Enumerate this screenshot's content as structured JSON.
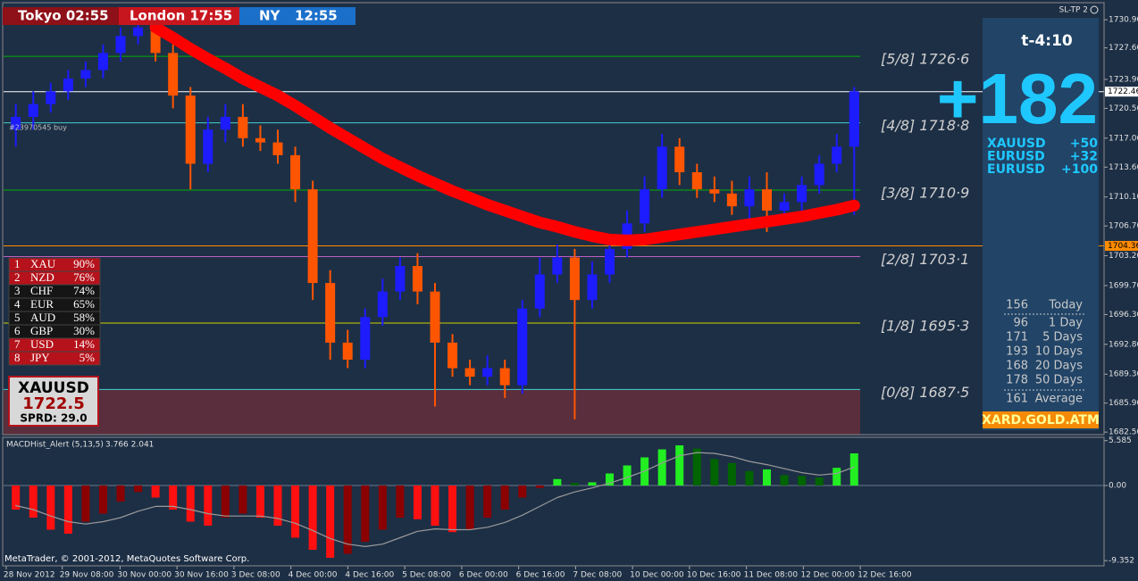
{
  "clock": {
    "tokyo": "Tokyo 02:55",
    "london": "London 17:55",
    "ny": "NY",
    "ny_time": "12:55"
  },
  "indicator_label": "SL-TP 2",
  "order_label": "#23970545 buy",
  "strength": [
    {
      "rank": "1",
      "name": "XAU",
      "pct": "90%",
      "color": "#b5121b"
    },
    {
      "rank": "2",
      "name": "NZD",
      "pct": "76%",
      "color": "#b5121b"
    },
    {
      "rank": "3",
      "name": "CHF",
      "pct": "74%",
      "color": "#151515"
    },
    {
      "rank": "4",
      "name": "EUR",
      "pct": "65%",
      "color": "#151515"
    },
    {
      "rank": "5",
      "name": "AUD",
      "pct": "58%",
      "color": "#151515"
    },
    {
      "rank": "6",
      "name": "GBP",
      "pct": "30%",
      "color": "#151515"
    },
    {
      "rank": "7",
      "name": "USD",
      "pct": "14%",
      "color": "#b5121b"
    },
    {
      "rank": "8",
      "name": "JPY",
      "pct": "5%",
      "color": "#b5121b"
    }
  ],
  "symbol_box": {
    "symbol": "XAUUSD",
    "price": "1722.5",
    "spread": "SPRD: 29.0"
  },
  "panel": {
    "timer": "t-4:10",
    "total": "+182",
    "pairs": [
      {
        "symbol": "XAUUSD",
        "value": "+50"
      },
      {
        "symbol": "EURUSD",
        "value": "+32"
      },
      {
        "symbol": "EURUSD",
        "value": "+100"
      }
    ],
    "ranges": [
      {
        "value": "156",
        "label": "Today"
      },
      {
        "value": "96",
        "label": "1 Day"
      },
      {
        "value": "171",
        "label": "5 Days"
      },
      {
        "value": "193",
        "label": "10 Days"
      },
      {
        "value": "168",
        "label": "20 Days"
      },
      {
        "value": "178",
        "label": "50 Days"
      }
    ],
    "average": {
      "value": "161",
      "label": "Average"
    },
    "brand": "XARD.GOLD.ATM"
  },
  "footer": "MetaTrader, © 2001-2012, MetaQuotes Software Corp.",
  "chart_data": [
    {
      "type": "candlestick",
      "x": [
        0,
        1,
        2,
        3,
        4,
        5,
        6,
        7,
        8,
        9,
        10,
        11,
        12,
        13,
        14,
        15,
        16,
        17,
        18,
        19,
        20,
        21,
        22,
        23,
        24,
        25,
        26,
        27,
        28,
        29,
        30,
        31,
        32,
        33,
        34,
        35,
        36,
        37,
        38,
        39,
        40,
        41,
        42,
        43,
        44,
        45,
        46,
        47,
        48
      ],
      "open": [
        1718,
        1719.5,
        1721,
        1722.5,
        1724,
        1725,
        1727,
        1729,
        1730,
        1727,
        1722,
        1714,
        1718,
        1719.5,
        1717,
        1716.5,
        1715,
        1711,
        1700,
        1693,
        1691,
        1696,
        1699,
        1702,
        1699,
        1693,
        1690,
        1689,
        1690,
        1688,
        1697,
        1701,
        1703,
        1698,
        1701,
        1704,
        1707,
        1711,
        1716,
        1713,
        1711,
        1710.5,
        1709,
        1711,
        1708.5,
        1709.5,
        1711.5,
        1714,
        1716
      ],
      "high": [
        1721,
        1722.5,
        1723.5,
        1725,
        1726,
        1728,
        1730,
        1731,
        1731.5,
        1728,
        1723,
        1719.5,
        1721,
        1721,
        1718.5,
        1718,
        1716,
        1712,
        1701.5,
        1694.5,
        1697,
        1700.5,
        1703,
        1703.5,
        1700,
        1694,
        1691,
        1691.5,
        1691,
        1698,
        1703,
        1704.5,
        1704,
        1702.5,
        1705.5,
        1708.5,
        1712.5,
        1717.5,
        1717,
        1714,
        1712.5,
        1712,
        1712.5,
        1713,
        1710.5,
        1712.5,
        1715,
        1717.5,
        1723
      ],
      "low": [
        1716,
        1718,
        1720,
        1721.5,
        1723,
        1724,
        1726,
        1728,
        1726,
        1720.5,
        1711,
        1713,
        1716.5,
        1716,
        1715.5,
        1714,
        1709.5,
        1698,
        1691,
        1690,
        1690,
        1695,
        1698,
        1697.5,
        1685.5,
        1689,
        1688,
        1688,
        1686.5,
        1687,
        1696,
        1700,
        1684,
        1697,
        1700,
        1703,
        1706,
        1710,
        1711.5,
        1710,
        1709.5,
        1708,
        1707.5,
        1706,
        1707.5,
        1708.5,
        1710.5,
        1713,
        1708
      ],
      "close": [
        1719.5,
        1721,
        1722.5,
        1724,
        1725,
        1727,
        1729,
        1730,
        1727,
        1722,
        1714,
        1718,
        1719.5,
        1717,
        1716.5,
        1715,
        1711,
        1700,
        1693,
        1691,
        1696,
        1699,
        1702,
        1699,
        1693,
        1690,
        1689,
        1690,
        1688,
        1697,
        1701,
        1703,
        1698,
        1701,
        1704,
        1707,
        1711,
        1716,
        1713,
        1711,
        1710.5,
        1709,
        1711,
        1708.5,
        1709.5,
        1711.5,
        1714,
        1716,
        1722.5
      ],
      "up_color": "#1c1cff",
      "down_color": "#ff5500",
      "lines": [
        {
          "color": "#ff0000",
          "values": [
            null,
            null,
            null,
            null,
            null,
            null,
            null,
            null,
            1730,
            1728.8,
            1727.5,
            1726.3,
            1725.2,
            1724,
            1723,
            1722,
            1720.8,
            1719.5,
            1718.2,
            1717,
            1715.8,
            1714.6,
            1713.6,
            1712.6,
            1711.7,
            1710.8,
            1710,
            1709.2,
            1708.5,
            1707.8,
            1707.1,
            1706.6,
            1706,
            1705.5,
            1705.1,
            1705,
            1705.1,
            1705.4,
            1705.7,
            1706,
            1706.3,
            1706.6,
            1706.9,
            1707.2,
            1707.5,
            1707.8,
            1708.2,
            1708.6,
            1709.1
          ]
        }
      ],
      "levels": [
        {
          "value": 1726.6,
          "label": "[5/8] 1726·6",
          "color": "#00b000"
        },
        {
          "value": 1718.8,
          "label": "[4/8] 1718·8",
          "color": "#40d0d0"
        },
        {
          "value": 1710.9,
          "label": "[3/8] 1710·9",
          "color": "#00b000"
        },
        {
          "value": 1703.1,
          "label": "[2/8] 1703·1",
          "color": "#c060c0"
        },
        {
          "value": 1695.3,
          "label": "[1/8] 1695·3",
          "color": "#d0d000"
        },
        {
          "value": 1687.5,
          "label": "[0/8] 1687·5",
          "color": "#40d0d0"
        }
      ],
      "zone_color": "#5a2e3c",
      "price_lines": [
        {
          "value": 1722.46,
          "color": "#ffffff"
        },
        {
          "value": 1704.36,
          "color": "#ff8c00"
        }
      ],
      "xlim": [
        -0.7,
        48.6
      ],
      "ylim": [
        1682.2,
        1732.8
      ],
      "xticks": [
        {
          "value": -0.55,
          "label": "28 Nov 2012"
        },
        {
          "value": 2.66,
          "label": "29 Nov 08:00"
        },
        {
          "value": 5.97,
          "label": "30 Nov 00:00"
        },
        {
          "value": 9.23,
          "label": "30 Nov 16:00"
        },
        {
          "value": 12.49,
          "label": "3 Dec 08:00"
        },
        {
          "value": 15.75,
          "label": "4 Dec 00:00"
        },
        {
          "value": 19.01,
          "label": "4 Dec 16:00"
        },
        {
          "value": 22.27,
          "label": "5 Dec 08:00"
        },
        {
          "value": 25.53,
          "label": "6 Dec 00:00"
        },
        {
          "value": 28.79,
          "label": "6 Dec 16:00"
        },
        {
          "value": 32.05,
          "label": "7 Dec 08:00"
        },
        {
          "value": 35.31,
          "label": "10 Dec 00:00"
        },
        {
          "value": 38.57,
          "label": "10 Dec 16:00"
        },
        {
          "value": 41.83,
          "label": "11 Dec 08:00"
        },
        {
          "value": 45.09,
          "label": "12 Dec 00:00"
        },
        {
          "value": 48.35,
          "label": "12 Dec 16:00"
        }
      ],
      "yticks": [
        {
          "value": 1730.9,
          "label": "1730.90"
        },
        {
          "value": 1727.6,
          "label": "1727.60"
        },
        {
          "value": 1723.9,
          "label": "1723.90"
        },
        {
          "value": 1720.5,
          "label": "1720.50"
        },
        {
          "value": 1717,
          "label": "1717.00"
        },
        {
          "value": 1713.6,
          "label": "1713.60"
        },
        {
          "value": 1710.1,
          "label": "1710.10"
        },
        {
          "value": 1706.7,
          "label": "1706.70"
        },
        {
          "value": 1703.2,
          "label": "1703.20"
        },
        {
          "value": 1699.7,
          "label": "1699.70"
        },
        {
          "value": 1696.3,
          "label": "1696.30"
        },
        {
          "value": 1692.8,
          "label": "1692.80"
        },
        {
          "value": 1689.3,
          "label": "1689.30"
        },
        {
          "value": 1685.9,
          "label": "1685.90"
        },
        {
          "value": 1682.5,
          "label": "1682.50"
        }
      ]
    },
    {
      "type": "bar",
      "title": "MACDHist_Alert (5,13,5)",
      "subtitle": "3.766 2.041",
      "x": [
        0,
        1,
        2,
        3,
        4,
        5,
        6,
        7,
        8,
        9,
        10,
        11,
        12,
        13,
        14,
        15,
        16,
        17,
        18,
        19,
        20,
        21,
        22,
        23,
        24,
        25,
        26,
        27,
        28,
        29,
        30,
        31,
        32,
        33,
        34,
        35,
        36,
        37,
        38,
        39,
        40,
        41,
        42,
        43,
        44,
        45,
        46,
        47,
        48
      ],
      "values": [
        -3,
        -4,
        -5.5,
        -6,
        -4.5,
        -3.5,
        -2,
        -0.8,
        -1.5,
        -3,
        -4.5,
        -5,
        -4,
        -3.5,
        -4,
        -5,
        -6.5,
        -8,
        -9,
        -8.5,
        -7,
        -5.5,
        -4,
        -4.2,
        -5,
        -5.8,
        -5.5,
        -4,
        -3,
        -1.5,
        -0.3,
        0.8,
        0.3,
        0.4,
        1.5,
        2.5,
        3.5,
        4.5,
        5,
        4.6,
        3.3,
        2.8,
        1.8,
        2,
        1.3,
        1.2,
        1,
        2.2,
        4
      ],
      "colors": {
        "neg_falling": "#ff1010",
        "neg_rising": "#8b0000",
        "pos_rising": "#22ee22",
        "pos_falling": "#006400"
      },
      "lines": [
        {
          "color": "#9a9a9a",
          "values": [
            -2.5,
            -3,
            -3.8,
            -4.5,
            -4.8,
            -4.5,
            -4,
            -3.2,
            -2.6,
            -2.6,
            -3,
            -3.5,
            -3.8,
            -3.8,
            -3.8,
            -4.1,
            -4.7,
            -5.6,
            -6.6,
            -7.3,
            -7.6,
            -7.3,
            -6.5,
            -5.7,
            -5.4,
            -5.5,
            -5.5,
            -5.2,
            -4.6,
            -3.7,
            -2.6,
            -1.5,
            -0.8,
            -0.3,
            0.3,
            1,
            1.8,
            2.8,
            3.7,
            4.1,
            4,
            3.6,
            3,
            2.6,
            2.1,
            1.6,
            1.3,
            1.5,
            2.3
          ]
        }
      ],
      "xlim": [
        -0.7,
        48.6
      ],
      "ylim": [
        -10,
        6
      ],
      "yticks": [
        5.585,
        {
          "value": 0,
          "label": "0.00"
        },
        -9.352
      ]
    }
  ]
}
